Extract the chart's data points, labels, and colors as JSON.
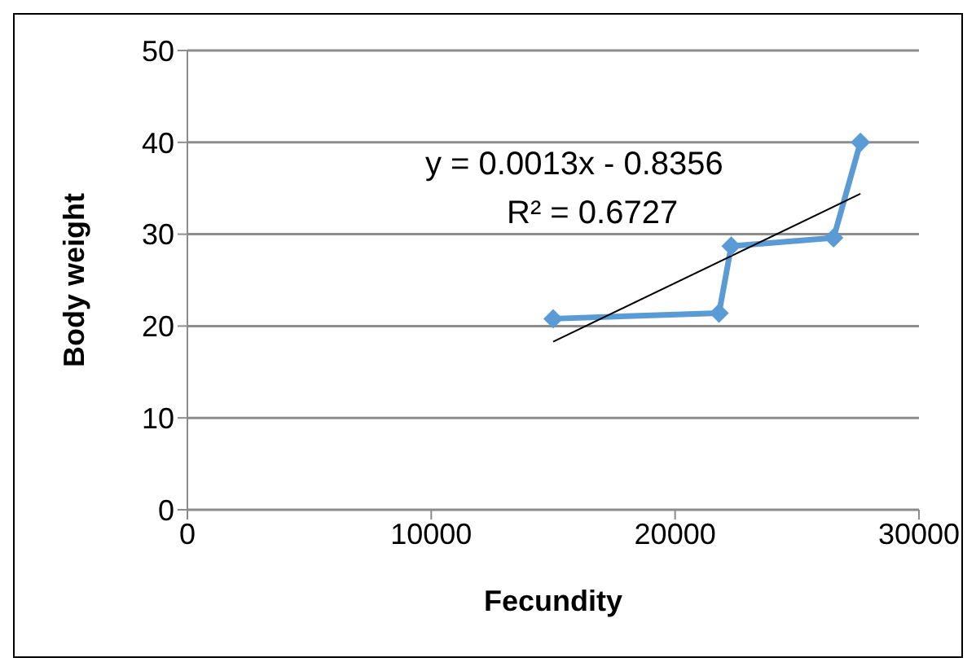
{
  "chart_data": {
    "type": "line",
    "xlabel": "Fecundity",
    "ylabel": "Body weight",
    "xlim": [
      0,
      30000
    ],
    "xticks": [
      0,
      10000,
      20000,
      30000
    ],
    "ylim": [
      0,
      50
    ],
    "yticks": [
      0,
      10,
      20,
      30,
      40,
      50
    ],
    "grid": "y",
    "legend": false,
    "marker": "diamond",
    "series": [
      {
        "color": "#5b9bd5",
        "x": [
          15000,
          21800,
          22300,
          26500,
          27600
        ],
        "values": [
          20.8,
          21.4,
          28.7,
          29.6,
          40
        ],
        "line_style": "solid"
      },
      {
        "color": "#000000",
        "x": [
          15000,
          27600
        ],
        "values": [
          18.3,
          34.4
        ],
        "marker": "none",
        "line_style": "solid"
      }
    ],
    "annotations": [
      "y = 0.0013x - 0.8356",
      "R² = 0.6727"
    ]
  }
}
